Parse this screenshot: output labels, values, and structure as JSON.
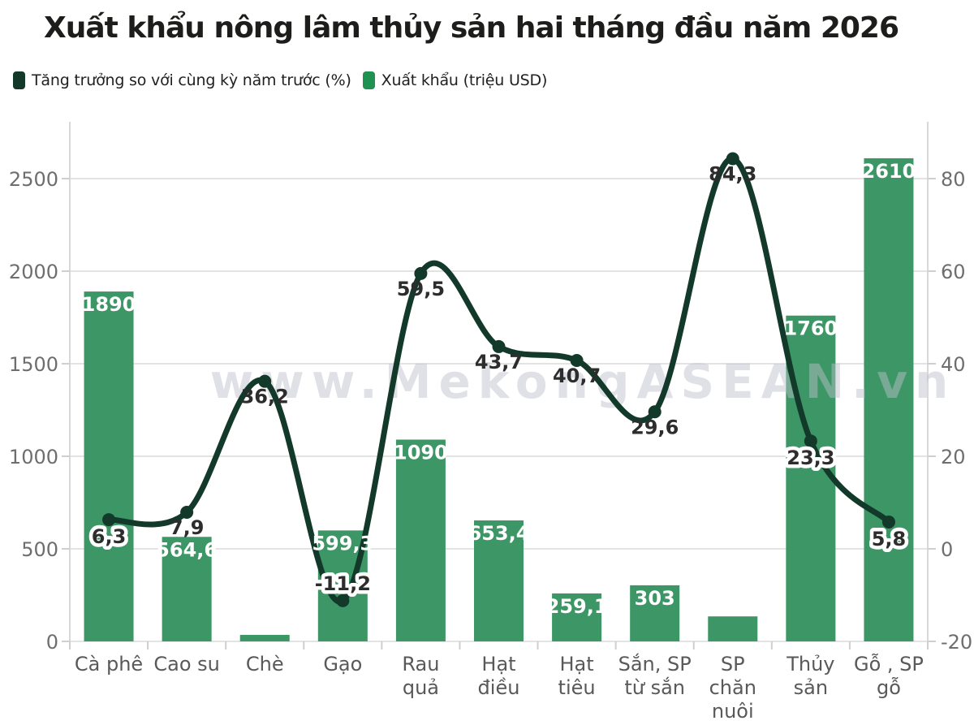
{
  "title": "Xuất khẩu nông lâm thủy sản hai tháng đầu năm 2026",
  "legend": [
    {
      "label": "Tăng trưởng so với cùng kỳ năm trước (%)",
      "color": "#12392a"
    },
    {
      "label": "Xuất khẩu (triệu USD)",
      "color": "#1f9150"
    }
  ],
  "watermark": "www.MekongASEAN.vn",
  "colors": {
    "bar": "#3d9665",
    "line": "#12392a",
    "grid": "#e3e3e3",
    "axis_line": "#d8d8d8",
    "tick": "#cfcfcf",
    "axis_text": "#6e6e6e",
    "category_text": "#595959",
    "bar_label": "#ffffff",
    "line_label": "#2d2d2d",
    "watermark": "#bcc0cc"
  },
  "chart_data": {
    "type": "bar",
    "title": "Xuất khẩu nông lâm thủy sản hai tháng đầu năm 2026",
    "categories": [
      "Cà phê",
      "Cao su",
      "Chè",
      "Gạo",
      "Rau quả",
      "Hạt điều",
      "Hạt tiêu",
      "Sắn, SP từ sắn",
      "SP chăn nuôi",
      "Thủy sản",
      "Gỗ , SP gỗ"
    ],
    "category_lines": [
      [
        "Cà phê"
      ],
      [
        "Cao su"
      ],
      [
        "Chè"
      ],
      [
        "Gạo"
      ],
      [
        "Rau",
        "quả"
      ],
      [
        "Hạt",
        "điều"
      ],
      [
        "Hạt",
        "tiêu"
      ],
      [
        "Sắn, SP",
        "từ sắn"
      ],
      [
        "SP",
        "chăn",
        "nuôi"
      ],
      [
        "Thủy",
        "sản"
      ],
      [
        "Gỗ , SP",
        "gỗ"
      ]
    ],
    "series": [
      {
        "name": "Xuất khẩu (triệu USD)",
        "type": "bar",
        "axis": "left",
        "values": [
          1890,
          564.6,
          35,
          599.3,
          1090,
          653.4,
          259.1,
          303,
          135,
          1760,
          2610
        ],
        "labels": [
          "1890",
          "564,6",
          "",
          "599,3",
          "1090",
          "653,4",
          "259,1",
          "303",
          "",
          "1760",
          "2610"
        ]
      },
      {
        "name": "Tăng trưởng so với cùng kỳ năm trước (%)",
        "type": "line",
        "axis": "right",
        "values": [
          6.3,
          7.9,
          36.2,
          -11.2,
          59.5,
          43.7,
          40.7,
          29.6,
          84.3,
          23.3,
          5.8
        ],
        "labels": [
          "6,3",
          "7,9",
          "36,2",
          "-11,2",
          "59,5",
          "43,7",
          "40,7",
          "29,6",
          "84,3",
          "23,3",
          "5,8"
        ],
        "label_halo": [
          true,
          false,
          false,
          true,
          false,
          false,
          false,
          false,
          false,
          true,
          true
        ],
        "label_side": [
          "below",
          "below",
          "below",
          "above",
          "below",
          "below",
          "below",
          "below",
          "below",
          "below",
          "below"
        ]
      }
    ],
    "left_axis": {
      "label": "triệu USD",
      "ticks": [
        0,
        500,
        1000,
        1500,
        2000,
        2500
      ],
      "tick_labels": [
        "0",
        "500",
        "1000",
        "1500",
        "2000",
        "2500"
      ],
      "range": [
        0,
        2810
      ]
    },
    "right_axis": {
      "label": "%",
      "ticks": [
        -20,
        0,
        20,
        40,
        60,
        80
      ],
      "tick_labels": [
        "-20",
        "0",
        "20",
        "40",
        "60",
        "80"
      ],
      "range": [
        -20,
        92
      ]
    },
    "grid": true,
    "legend_position": "top-left"
  }
}
